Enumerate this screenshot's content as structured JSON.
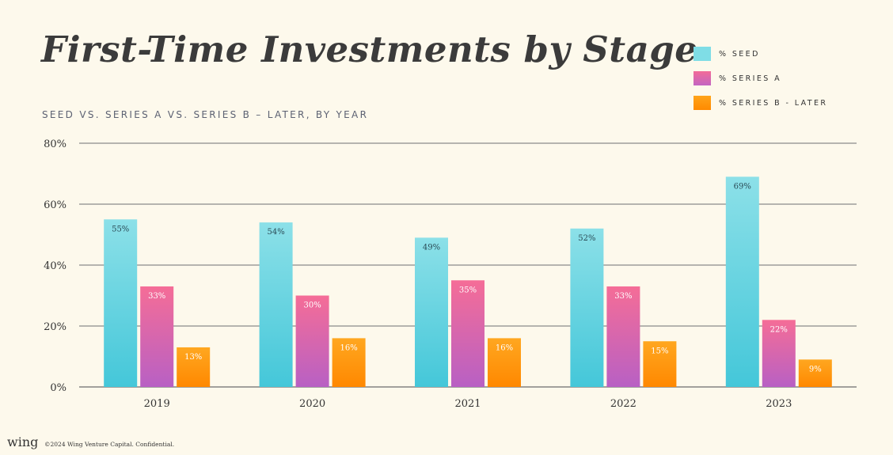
{
  "title": "First-Time Investments by Stage",
  "subtitle": "SEED VS. SERIES A VS. SERIES B – LATER, BY YEAR",
  "footer": {
    "logo": "wing",
    "text": "©2024 Wing Venture Capital. Confidential."
  },
  "chart_data": {
    "type": "bar",
    "title": "First-Time Investments by Stage",
    "subtitle": "SEED VS. SERIES A VS. SERIES B – LATER, BY YEAR",
    "categories": [
      "2019",
      "2020",
      "2021",
      "2022",
      "2023"
    ],
    "series": [
      {
        "name": "% SEED",
        "values": [
          55,
          54,
          49,
          52,
          69
        ],
        "labels": [
          "55%",
          "54%",
          "49%",
          "52%",
          "69%"
        ],
        "color": "#5fd4e0"
      },
      {
        "name": "% SERIES A",
        "values": [
          33,
          30,
          35,
          33,
          22
        ],
        "labels": [
          "33%",
          "30%",
          "35%",
          "33%",
          "22%"
        ],
        "color": "#f0679a"
      },
      {
        "name": "% SERIES B - LATER",
        "values": [
          13,
          16,
          16,
          15,
          9
        ],
        "labels": [
          "13%",
          "16%",
          "16%",
          "15%",
          "9%"
        ],
        "color": "#ff9d0e"
      }
    ],
    "ylim": [
      0,
      80
    ],
    "yticks": [
      0,
      20,
      40,
      60,
      80
    ],
    "ytick_labels": [
      "0%",
      "20%",
      "40%",
      "60%",
      "80%"
    ],
    "grid": true,
    "legend_position": "top-right"
  }
}
